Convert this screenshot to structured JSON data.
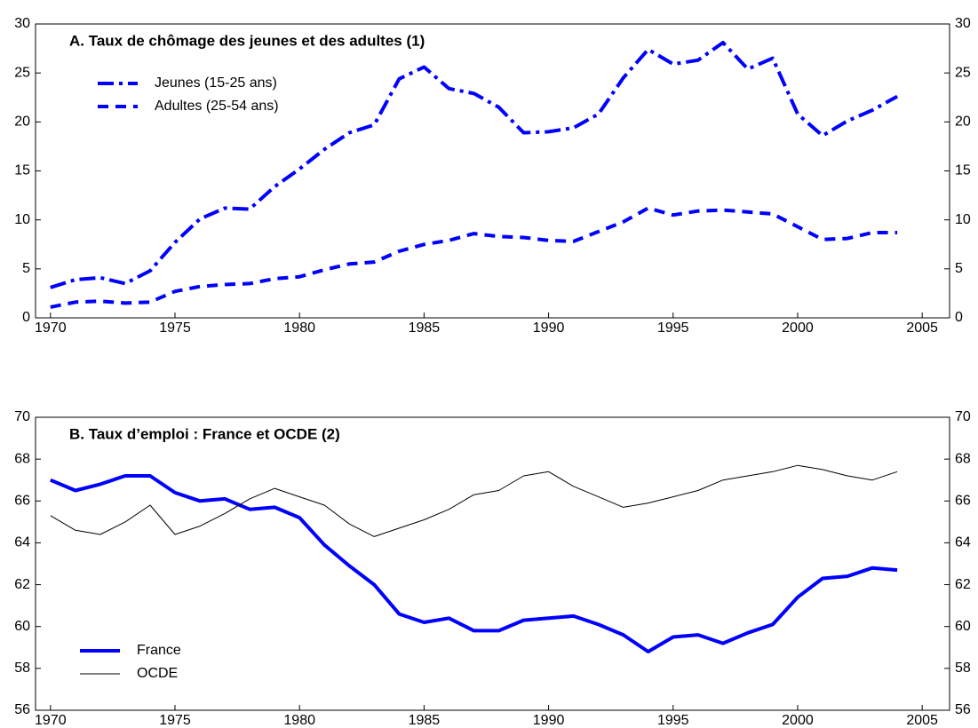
{
  "chart_data": [
    {
      "type": "line",
      "title": "A. Taux de chômage des jeunes et des adultes (1)",
      "x": [
        1970,
        1971,
        1972,
        1973,
        1974,
        1975,
        1976,
        1977,
        1978,
        1979,
        1980,
        1981,
        1982,
        1983,
        1984,
        1985,
        1986,
        1987,
        1988,
        1989,
        1990,
        1991,
        1992,
        1993,
        1994,
        1995,
        1996,
        1997,
        1998,
        1999,
        2000,
        2001,
        2002,
        2003,
        2004
      ],
      "series": [
        {
          "name": "Jeunes (15-25 ans)",
          "color": "#0000ff",
          "line_style": "dash-dot",
          "line_width": 4,
          "values": [
            3.1,
            3.9,
            4.1,
            3.5,
            4.8,
            7.7,
            10.1,
            11.2,
            11.1,
            13.4,
            15.2,
            17.2,
            18.9,
            19.7,
            24.4,
            25.6,
            23.4,
            22.9,
            21.5,
            18.9,
            19.0,
            19.4,
            20.8,
            24.5,
            27.4,
            25.9,
            26.3,
            28.1,
            25.4,
            26.5,
            20.8,
            18.6,
            20.1,
            21.2,
            22.6
          ]
        },
        {
          "name": "Adultes (25-54 ans)",
          "color": "#0000ff",
          "line_style": "dashed",
          "line_width": 4,
          "values": [
            1.1,
            1.6,
            1.7,
            1.5,
            1.6,
            2.7,
            3.2,
            3.4,
            3.5,
            4.0,
            4.2,
            4.9,
            5.5,
            5.7,
            6.8,
            7.5,
            7.9,
            8.6,
            8.3,
            8.2,
            7.9,
            7.8,
            8.8,
            9.8,
            11.2,
            10.5,
            10.9,
            11.0,
            10.8,
            10.6,
            9.3,
            8.0,
            8.1,
            8.7,
            8.7
          ]
        }
      ],
      "xlim": [
        1969.4,
        2006.1
      ],
      "xticks": [
        1970,
        1975,
        1980,
        1985,
        1990,
        1995,
        2000,
        2005
      ],
      "ylim": [
        0,
        30
      ],
      "yticks": [
        0,
        5,
        10,
        15,
        20,
        25,
        30
      ],
      "y2lim": [
        0,
        30
      ],
      "y2ticks": [
        0,
        5,
        10,
        15,
        20,
        25,
        30
      ],
      "legend": "upper left"
    },
    {
      "type": "line",
      "title": "B. Taux d’emploi : France et OCDE (2)",
      "x": [
        1970,
        1971,
        1972,
        1973,
        1974,
        1975,
        1976,
        1977,
        1978,
        1979,
        1980,
        1981,
        1982,
        1983,
        1984,
        1985,
        1986,
        1987,
        1988,
        1989,
        1990,
        1991,
        1992,
        1993,
        1994,
        1995,
        1996,
        1997,
        1998,
        1999,
        2000,
        2001,
        2002,
        2003,
        2004
      ],
      "series": [
        {
          "name": "France",
          "color": "#0000ff",
          "line_style": "solid",
          "line_width": 4,
          "values": [
            67.0,
            66.5,
            66.8,
            67.2,
            67.2,
            66.4,
            66.0,
            66.1,
            65.6,
            65.7,
            65.2,
            63.9,
            62.9,
            62.0,
            60.6,
            60.2,
            60.4,
            59.8,
            59.8,
            60.3,
            60.4,
            60.5,
            60.1,
            59.6,
            58.8,
            59.5,
            59.6,
            59.2,
            59.7,
            60.1,
            61.4,
            62.3,
            62.4,
            62.8,
            62.7
          ]
        },
        {
          "name": "OCDE",
          "color": "#000000",
          "line_style": "solid",
          "line_width": 1,
          "values": [
            65.3,
            64.6,
            64.4,
            65.0,
            65.8,
            64.4,
            64.8,
            65.4,
            66.1,
            66.6,
            66.2,
            65.8,
            64.9,
            64.3,
            64.7,
            65.1,
            65.6,
            66.3,
            66.5,
            67.2,
            67.4,
            66.7,
            66.2,
            65.7,
            65.9,
            66.2,
            66.5,
            67.0,
            67.2,
            67.4,
            67.7,
            67.5,
            67.2,
            67.0,
            67.4
          ]
        }
      ],
      "xlim": [
        1969.4,
        2006.1
      ],
      "xticks": [
        1970,
        1975,
        1980,
        1985,
        1990,
        1995,
        2000,
        2005
      ],
      "ylim": [
        56,
        70
      ],
      "yticks": [
        56,
        58,
        60,
        62,
        64,
        66,
        68,
        70
      ],
      "y2lim": [
        56,
        70
      ],
      "y2ticks": [
        56,
        58,
        60,
        62,
        64,
        66,
        68,
        70
      ],
      "legend": "lower left"
    }
  ]
}
